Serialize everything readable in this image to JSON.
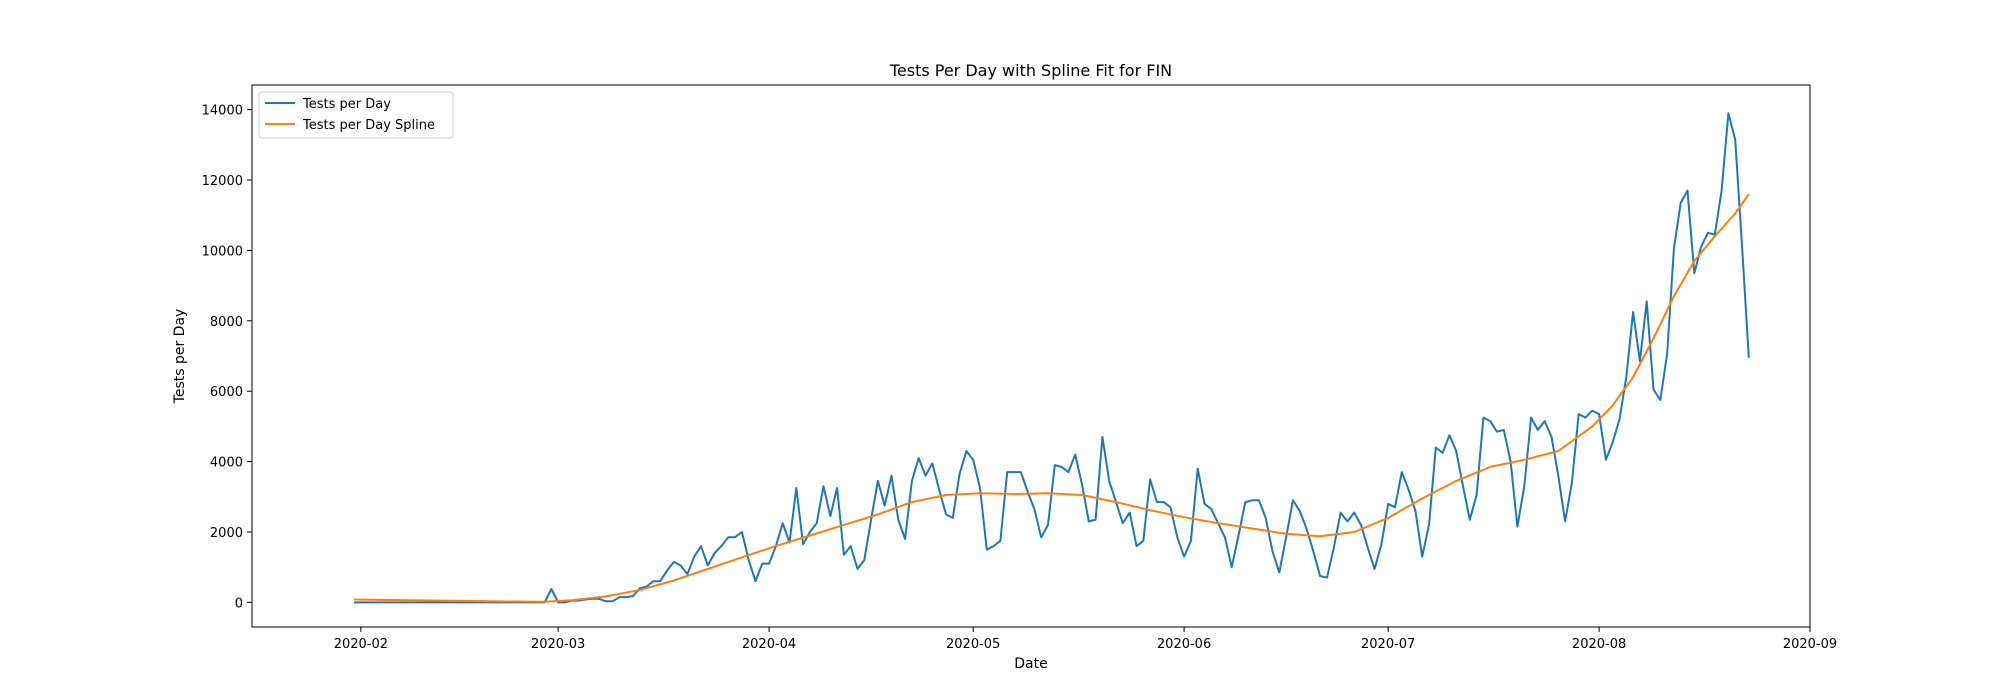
{
  "chart_data": {
    "type": "line",
    "title": "Tests Per Day with Spline Fit for FIN",
    "xlabel": "Date",
    "ylabel": "Tests per Day",
    "x_range": [
      "2020-01-16",
      "2020-09-01"
    ],
    "ylim": [
      -700,
      14700
    ],
    "x_ticks": [
      "2020-02",
      "2020-03",
      "2020-04",
      "2020-05",
      "2020-06",
      "2020-07",
      "2020-08",
      "2020-09"
    ],
    "y_ticks": [
      0,
      2000,
      4000,
      6000,
      8000,
      10000,
      12000,
      14000
    ],
    "grid": false,
    "legend_position": "top-left",
    "series": [
      {
        "name": "Tests per Day",
        "color": "#1f77b4",
        "points": [
          [
            "2020-01-31",
            0
          ],
          [
            "2020-02-28",
            0
          ],
          [
            "2020-02-29",
            380
          ],
          [
            "2020-03-01",
            0
          ],
          [
            "2020-03-02",
            0
          ],
          [
            "2020-03-03",
            50
          ],
          [
            "2020-03-04",
            50
          ],
          [
            "2020-03-05",
            80
          ],
          [
            "2020-03-06",
            100
          ],
          [
            "2020-03-07",
            100
          ],
          [
            "2020-03-08",
            30
          ],
          [
            "2020-03-09",
            30
          ],
          [
            "2020-03-10",
            150
          ],
          [
            "2020-03-11",
            150
          ],
          [
            "2020-03-12",
            180
          ],
          [
            "2020-03-13",
            400
          ],
          [
            "2020-03-14",
            450
          ],
          [
            "2020-03-15",
            600
          ],
          [
            "2020-03-16",
            600
          ],
          [
            "2020-03-17",
            900
          ],
          [
            "2020-03-18",
            1150
          ],
          [
            "2020-03-19",
            1050
          ],
          [
            "2020-03-20",
            800
          ],
          [
            "2020-03-21",
            1300
          ],
          [
            "2020-03-22",
            1600
          ],
          [
            "2020-03-23",
            1050
          ],
          [
            "2020-03-24",
            1400
          ],
          [
            "2020-03-25",
            1600
          ],
          [
            "2020-03-26",
            1850
          ],
          [
            "2020-03-27",
            1850
          ],
          [
            "2020-03-28",
            2000
          ],
          [
            "2020-03-29",
            1200
          ],
          [
            "2020-03-30",
            600
          ],
          [
            "2020-03-31",
            1100
          ],
          [
            "2020-04-01",
            1100
          ],
          [
            "2020-04-02",
            1600
          ],
          [
            "2020-04-03",
            2250
          ],
          [
            "2020-04-04",
            1700
          ],
          [
            "2020-04-05",
            3250
          ],
          [
            "2020-04-06",
            1650
          ],
          [
            "2020-04-07",
            2000
          ],
          [
            "2020-04-08",
            2250
          ],
          [
            "2020-04-09",
            3300
          ],
          [
            "2020-04-10",
            2450
          ],
          [
            "2020-04-11",
            3250
          ],
          [
            "2020-04-12",
            1350
          ],
          [
            "2020-04-13",
            1600
          ],
          [
            "2020-04-14",
            950
          ],
          [
            "2020-04-15",
            1200
          ],
          [
            "2020-04-16",
            2350
          ],
          [
            "2020-04-17",
            3450
          ],
          [
            "2020-04-18",
            2750
          ],
          [
            "2020-04-19",
            3600
          ],
          [
            "2020-04-20",
            2350
          ],
          [
            "2020-04-21",
            1800
          ],
          [
            "2020-04-22",
            3450
          ],
          [
            "2020-04-23",
            4100
          ],
          [
            "2020-04-24",
            3600
          ],
          [
            "2020-04-25",
            3950
          ],
          [
            "2020-04-26",
            3200
          ],
          [
            "2020-04-27",
            2500
          ],
          [
            "2020-04-28",
            2400
          ],
          [
            "2020-04-29",
            3650
          ],
          [
            "2020-04-30",
            4300
          ],
          [
            "2020-05-01",
            4050
          ],
          [
            "2020-05-02",
            3250
          ],
          [
            "2020-05-03",
            1500
          ],
          [
            "2020-05-04",
            1600
          ],
          [
            "2020-05-05",
            1750
          ],
          [
            "2020-05-06",
            3700
          ],
          [
            "2020-05-07",
            3700
          ],
          [
            "2020-05-08",
            3700
          ],
          [
            "2020-05-09",
            3150
          ],
          [
            "2020-05-10",
            2650
          ],
          [
            "2020-05-11",
            1850
          ],
          [
            "2020-05-12",
            2200
          ],
          [
            "2020-05-13",
            3900
          ],
          [
            "2020-05-14",
            3850
          ],
          [
            "2020-05-15",
            3700
          ],
          [
            "2020-05-16",
            4200
          ],
          [
            "2020-05-17",
            3350
          ],
          [
            "2020-05-18",
            2300
          ],
          [
            "2020-05-19",
            2350
          ],
          [
            "2020-05-20",
            4700
          ],
          [
            "2020-05-21",
            3450
          ],
          [
            "2020-05-22",
            2850
          ],
          [
            "2020-05-23",
            2250
          ],
          [
            "2020-05-24",
            2550
          ],
          [
            "2020-05-25",
            1600
          ],
          [
            "2020-05-26",
            1750
          ],
          [
            "2020-05-27",
            3500
          ],
          [
            "2020-05-28",
            2850
          ],
          [
            "2020-05-29",
            2850
          ],
          [
            "2020-05-30",
            2700
          ],
          [
            "2020-05-31",
            1850
          ],
          [
            "2020-06-01",
            1300
          ],
          [
            "2020-06-02",
            1750
          ],
          [
            "2020-06-03",
            3800
          ],
          [
            "2020-06-04",
            2800
          ],
          [
            "2020-06-05",
            2650
          ],
          [
            "2020-06-06",
            2250
          ],
          [
            "2020-06-07",
            1850
          ],
          [
            "2020-06-08",
            1000
          ],
          [
            "2020-06-09",
            1900
          ],
          [
            "2020-06-10",
            2850
          ],
          [
            "2020-06-11",
            2900
          ],
          [
            "2020-06-12",
            2900
          ],
          [
            "2020-06-13",
            2400
          ],
          [
            "2020-06-14",
            1450
          ],
          [
            "2020-06-15",
            850
          ],
          [
            "2020-06-16",
            1850
          ],
          [
            "2020-06-17",
            2900
          ],
          [
            "2020-06-18",
            2600
          ],
          [
            "2020-06-19",
            2100
          ],
          [
            "2020-06-20",
            1450
          ],
          [
            "2020-06-21",
            750
          ],
          [
            "2020-06-22",
            700
          ],
          [
            "2020-06-23",
            1550
          ],
          [
            "2020-06-24",
            2550
          ],
          [
            "2020-06-25",
            2300
          ],
          [
            "2020-06-26",
            2550
          ],
          [
            "2020-06-27",
            2200
          ],
          [
            "2020-06-28",
            1550
          ],
          [
            "2020-06-29",
            950
          ],
          [
            "2020-06-30",
            1650
          ],
          [
            "2020-07-01",
            2800
          ],
          [
            "2020-07-02",
            2700
          ],
          [
            "2020-07-03",
            3700
          ],
          [
            "2020-07-04",
            3200
          ],
          [
            "2020-07-05",
            2600
          ],
          [
            "2020-07-06",
            1300
          ],
          [
            "2020-07-07",
            2200
          ],
          [
            "2020-07-08",
            4400
          ],
          [
            "2020-07-09",
            4250
          ],
          [
            "2020-07-10",
            4750
          ],
          [
            "2020-07-11",
            4300
          ],
          [
            "2020-07-12",
            3300
          ],
          [
            "2020-07-13",
            2350
          ],
          [
            "2020-07-14",
            3050
          ],
          [
            "2020-07-15",
            5250
          ],
          [
            "2020-07-16",
            5150
          ],
          [
            "2020-07-17",
            4850
          ],
          [
            "2020-07-18",
            4900
          ],
          [
            "2020-07-19",
            4000
          ],
          [
            "2020-07-20",
            2150
          ],
          [
            "2020-07-21",
            3300
          ],
          [
            "2020-07-22",
            5250
          ],
          [
            "2020-07-23",
            4900
          ],
          [
            "2020-07-24",
            5150
          ],
          [
            "2020-07-25",
            4700
          ],
          [
            "2020-07-26",
            3600
          ],
          [
            "2020-07-27",
            2300
          ],
          [
            "2020-07-28",
            3400
          ],
          [
            "2020-07-29",
            5350
          ],
          [
            "2020-07-30",
            5250
          ],
          [
            "2020-07-31",
            5450
          ],
          [
            "2020-08-01",
            5350
          ],
          [
            "2020-08-02",
            4050
          ],
          [
            "2020-08-03",
            4550
          ],
          [
            "2020-08-04",
            5200
          ],
          [
            "2020-08-05",
            6400
          ],
          [
            "2020-08-06",
            8250
          ],
          [
            "2020-08-07",
            6850
          ],
          [
            "2020-08-08",
            8550
          ],
          [
            "2020-08-09",
            6050
          ],
          [
            "2020-08-10",
            5750
          ],
          [
            "2020-08-11",
            7050
          ],
          [
            "2020-08-12",
            10050
          ],
          [
            "2020-08-13",
            11350
          ],
          [
            "2020-08-14",
            11700
          ],
          [
            "2020-08-15",
            9350
          ],
          [
            "2020-08-16",
            10100
          ],
          [
            "2020-08-17",
            10500
          ],
          [
            "2020-08-18",
            10450
          ],
          [
            "2020-08-19",
            11700
          ],
          [
            "2020-08-20",
            13900
          ],
          [
            "2020-08-21",
            13150
          ],
          [
            "2020-08-22",
            10150
          ],
          [
            "2020-08-23",
            6950
          ]
        ]
      },
      {
        "name": "Tests per Day Spline",
        "color": "#ff7f0e",
        "points": [
          [
            "2020-01-31",
            80
          ],
          [
            "2020-02-10",
            55
          ],
          [
            "2020-02-20",
            30
          ],
          [
            "2020-02-28",
            20
          ],
          [
            "2020-03-03",
            60
          ],
          [
            "2020-03-08",
            170
          ],
          [
            "2020-03-13",
            350
          ],
          [
            "2020-03-18",
            620
          ],
          [
            "2020-03-23",
            950
          ],
          [
            "2020-03-28",
            1280
          ],
          [
            "2020-04-02",
            1600
          ],
          [
            "2020-04-07",
            1900
          ],
          [
            "2020-04-12",
            2200
          ],
          [
            "2020-04-17",
            2500
          ],
          [
            "2020-04-22",
            2850
          ],
          [
            "2020-04-27",
            3050
          ],
          [
            "2020-05-02",
            3100
          ],
          [
            "2020-05-07",
            3080
          ],
          [
            "2020-05-12",
            3100
          ],
          [
            "2020-05-17",
            3050
          ],
          [
            "2020-05-22",
            2850
          ],
          [
            "2020-05-27",
            2620
          ],
          [
            "2020-06-01",
            2420
          ],
          [
            "2020-06-06",
            2250
          ],
          [
            "2020-06-11",
            2100
          ],
          [
            "2020-06-16",
            1950
          ],
          [
            "2020-06-21",
            1880
          ],
          [
            "2020-06-26",
            2000
          ],
          [
            "2020-07-01",
            2400
          ],
          [
            "2020-07-06",
            2950
          ],
          [
            "2020-07-11",
            3450
          ],
          [
            "2020-07-16",
            3850
          ],
          [
            "2020-07-21",
            4050
          ],
          [
            "2020-07-26",
            4300
          ],
          [
            "2020-07-31",
            5000
          ],
          [
            "2020-08-03",
            5600
          ],
          [
            "2020-08-06",
            6400
          ],
          [
            "2020-08-09",
            7500
          ],
          [
            "2020-08-12",
            8700
          ],
          [
            "2020-08-15",
            9700
          ],
          [
            "2020-08-18",
            10400
          ],
          [
            "2020-08-21",
            11050
          ],
          [
            "2020-08-23",
            11600
          ]
        ]
      }
    ]
  }
}
